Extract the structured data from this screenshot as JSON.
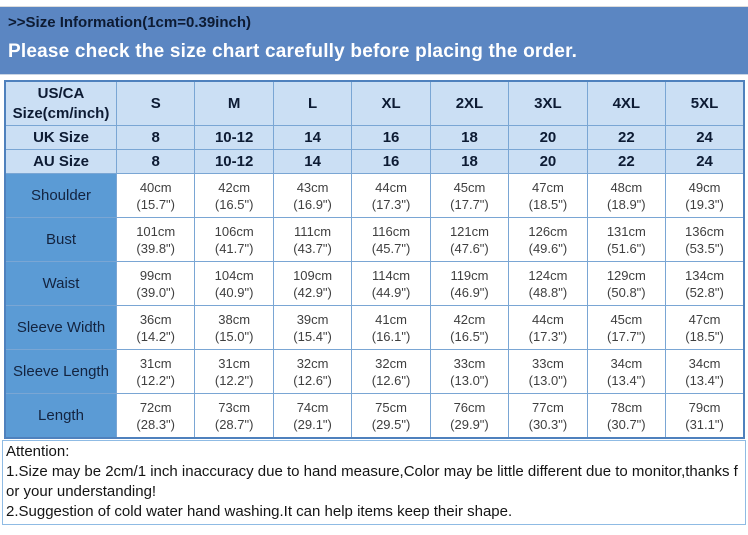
{
  "page": {
    "title": ">>Size Information(1cm=0.39inch)",
    "banner": "Please check the size chart carefully before placing the order."
  },
  "colors": {
    "banner_blue": "#5b86c2",
    "header_light_blue": "#cbdff4",
    "label_blue": "#5b9bd5",
    "border_blue": "#7aa6d4"
  },
  "table": {
    "corner_header_line1": "US/CA",
    "corner_header_line2": "Size(cm/inch)",
    "size_columns": [
      "S",
      "M",
      "L",
      "XL",
      "2XL",
      "3XL",
      "4XL",
      "5XL"
    ],
    "size_rows": [
      {
        "label": "UK Size",
        "values": [
          "8",
          "10-12",
          "14",
          "16",
          "18",
          "20",
          "22",
          "24"
        ]
      },
      {
        "label": "AU Size",
        "values": [
          "8",
          "10-12",
          "14",
          "16",
          "18",
          "20",
          "22",
          "24"
        ]
      }
    ],
    "measurement_rows": [
      {
        "label": "Shoulder",
        "cells": [
          {
            "cm": "40cm",
            "inch": "(15.7\")"
          },
          {
            "cm": "42cm",
            "inch": "(16.5\")"
          },
          {
            "cm": "43cm",
            "inch": "(16.9\")"
          },
          {
            "cm": "44cm",
            "inch": "(17.3\")"
          },
          {
            "cm": "45cm",
            "inch": "(17.7\")"
          },
          {
            "cm": "47cm",
            "inch": "(18.5\")"
          },
          {
            "cm": "48cm",
            "inch": "(18.9\")"
          },
          {
            "cm": "49cm",
            "inch": "(19.3\")"
          }
        ]
      },
      {
        "label": "Bust",
        "cells": [
          {
            "cm": "101cm",
            "inch": "(39.8\")"
          },
          {
            "cm": "106cm",
            "inch": "(41.7\")"
          },
          {
            "cm": "111cm",
            "inch": "(43.7\")"
          },
          {
            "cm": "116cm",
            "inch": "(45.7\")"
          },
          {
            "cm": "121cm",
            "inch": "(47.6\")"
          },
          {
            "cm": "126cm",
            "inch": "(49.6\")"
          },
          {
            "cm": "131cm",
            "inch": "(51.6\")"
          },
          {
            "cm": "136cm",
            "inch": "(53.5\")"
          }
        ]
      },
      {
        "label": "Waist",
        "cells": [
          {
            "cm": "99cm",
            "inch": "(39.0\")"
          },
          {
            "cm": "104cm",
            "inch": "(40.9\")"
          },
          {
            "cm": "109cm",
            "inch": "(42.9\")"
          },
          {
            "cm": "114cm",
            "inch": "(44.9\")"
          },
          {
            "cm": "119cm",
            "inch": "(46.9\")"
          },
          {
            "cm": "124cm",
            "inch": "(48.8\")"
          },
          {
            "cm": "129cm",
            "inch": "(50.8\")"
          },
          {
            "cm": "134cm",
            "inch": "(52.8\")"
          }
        ]
      },
      {
        "label": "Sleeve Width",
        "cells": [
          {
            "cm": "36cm",
            "inch": "(14.2\")"
          },
          {
            "cm": "38cm",
            "inch": "(15.0\")"
          },
          {
            "cm": "39cm",
            "inch": "(15.4\")"
          },
          {
            "cm": "41cm",
            "inch": "(16.1\")"
          },
          {
            "cm": "42cm",
            "inch": "(16.5\")"
          },
          {
            "cm": "44cm",
            "inch": "(17.3\")"
          },
          {
            "cm": "45cm",
            "inch": "(17.7\")"
          },
          {
            "cm": "47cm",
            "inch": "(18.5\")"
          }
        ]
      },
      {
        "label": "Sleeve Length",
        "cells": [
          {
            "cm": "31cm",
            "inch": "(12.2\")"
          },
          {
            "cm": "31cm",
            "inch": "(12.2\")"
          },
          {
            "cm": "32cm",
            "inch": "(12.6\")"
          },
          {
            "cm": "32cm",
            "inch": "(12.6\")"
          },
          {
            "cm": "33cm",
            "inch": "(13.0\")"
          },
          {
            "cm": "33cm",
            "inch": "(13.0\")"
          },
          {
            "cm": "34cm",
            "inch": "(13.4\")"
          },
          {
            "cm": "34cm",
            "inch": "(13.4\")"
          }
        ]
      },
      {
        "label": "Length",
        "cells": [
          {
            "cm": "72cm",
            "inch": "(28.3\")"
          },
          {
            "cm": "73cm",
            "inch": "(28.7\")"
          },
          {
            "cm": "74cm",
            "inch": "(29.1\")"
          },
          {
            "cm": "75cm",
            "inch": "(29.5\")"
          },
          {
            "cm": "76cm",
            "inch": "(29.9\")"
          },
          {
            "cm": "77cm",
            "inch": "(30.3\")"
          },
          {
            "cm": "78cm",
            "inch": "(30.7\")"
          },
          {
            "cm": "79cm",
            "inch": "(31.1\")"
          }
        ]
      }
    ]
  },
  "attention": {
    "heading": "Attention:",
    "notes": [
      "1.Size may be 2cm/1 inch inaccuracy due to hand measure,Color may be little different due to monitor,thanks for your understanding!",
      "2.Suggestion of cold water hand washing.It can help items keep their shape."
    ]
  }
}
